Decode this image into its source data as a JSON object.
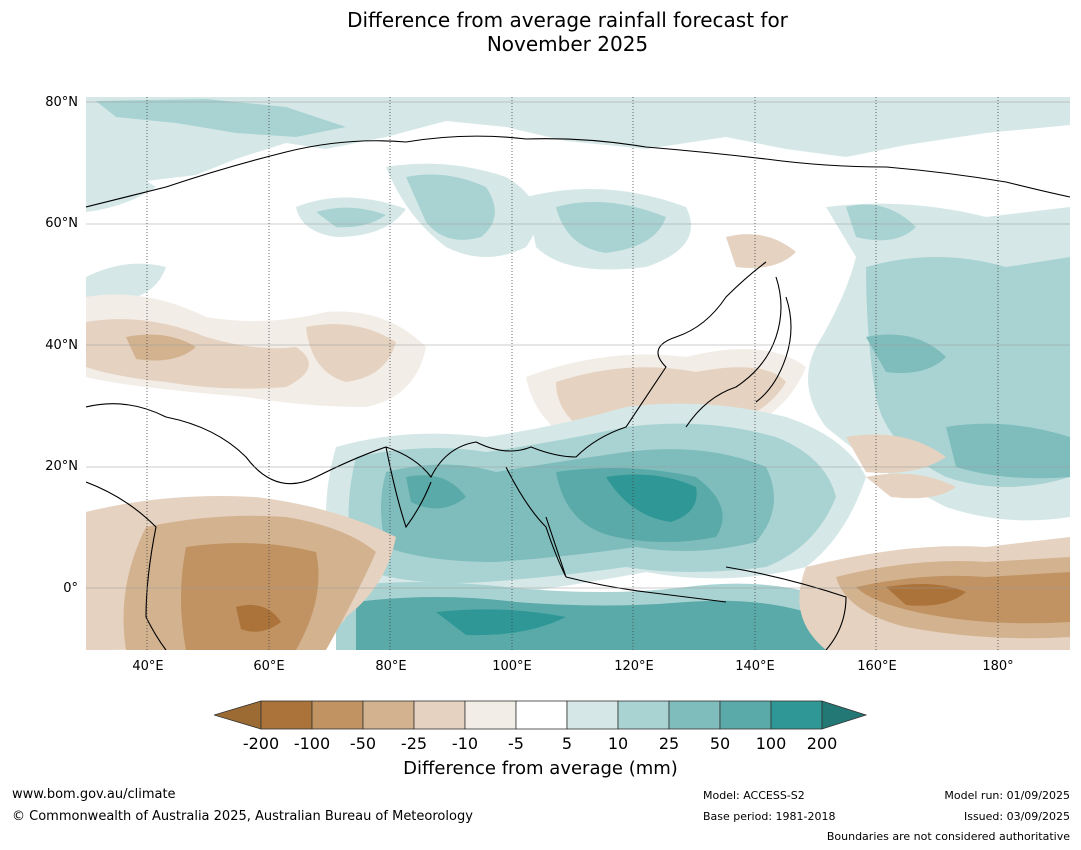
{
  "title_line1": "Difference from average rainfall forecast for",
  "title_line2": "November 2025",
  "lat_labels": [
    "80°N",
    "60°N",
    "40°N",
    "20°N",
    "0°"
  ],
  "lon_labels": [
    "40°E",
    "60°E",
    "80°E",
    "100°E",
    "120°E",
    "140°E",
    "160°E",
    "180°"
  ],
  "colorbar": {
    "title": "Difference from average (mm)",
    "ticks": [
      "-200",
      "-100",
      "-50",
      "-25",
      "-10",
      "-5",
      "5",
      "10",
      "25",
      "50",
      "100",
      "200"
    ],
    "colors": [
      "#9c6a33",
      "#ab733a",
      "#c19362",
      "#d3b28f",
      "#e5d2c0",
      "#f2ede7",
      "#ffffff",
      "#d5e8e7",
      "#a9d3d3",
      "#7fbcbc",
      "#5aaaa9",
      "#2f9896",
      "#237876"
    ]
  },
  "footer": {
    "website": "www.bom.gov.au/climate",
    "copyright": "© Commonwealth of Australia 2025, Australian Bureau of Meteorology",
    "model": "Model: ACCESS-S2",
    "base_period": "Base period: 1981-2018",
    "model_run": "Model run: 01/09/2025",
    "issued": "Issued: 03/09/2025",
    "boundaries_note": "Boundaries are not considered authoritative"
  },
  "map": {
    "projection": "equirectangular",
    "lon_range": [
      30,
      192
    ],
    "lat_range": [
      -10,
      81
    ],
    "gridlines": true
  }
}
